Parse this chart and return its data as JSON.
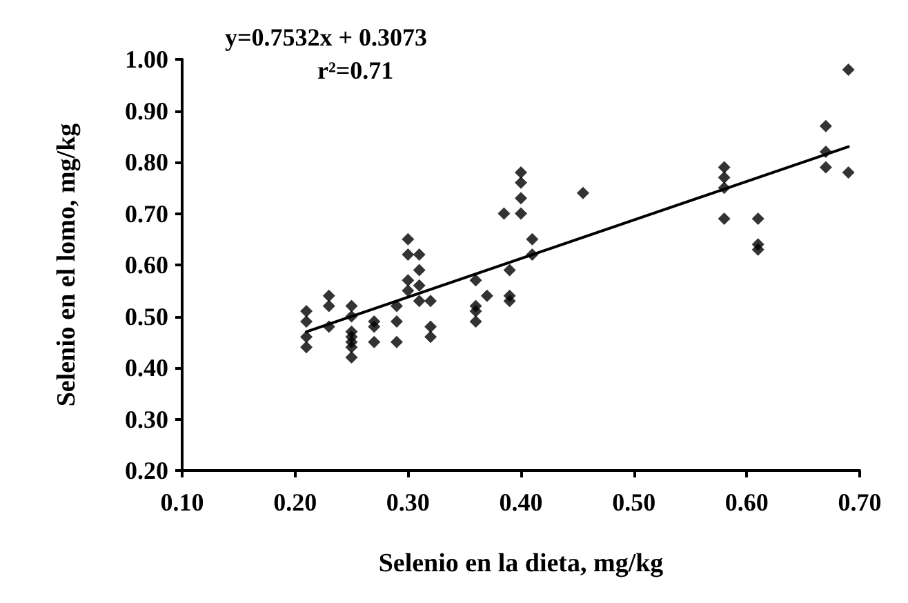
{
  "chart_data": {
    "type": "scatter",
    "xlabel": "Selenio en la dieta, mg/kg",
    "ylabel": "Selenio en el lomo, mg/kg",
    "annotations": [
      "y=0.7532x + 0.3073",
      "r²=0.71"
    ],
    "xlim": [
      0.1,
      0.7
    ],
    "ylim": [
      0.2,
      1.0
    ],
    "xticks": [
      {
        "value": 0.1,
        "label": "0.10"
      },
      {
        "value": 0.2,
        "label": "0.20"
      },
      {
        "value": 0.3,
        "label": "0.30"
      },
      {
        "value": 0.4,
        "label": "0.40"
      },
      {
        "value": 0.5,
        "label": "0.50"
      },
      {
        "value": 0.6,
        "label": "0.60"
      },
      {
        "value": 0.7,
        "label": "0.70"
      }
    ],
    "yticks": [
      {
        "value": 0.2,
        "label": "0.20"
      },
      {
        "value": 0.3,
        "label": "0.30"
      },
      {
        "value": 0.4,
        "label": "0.40"
      },
      {
        "value": 0.5,
        "label": "0.50"
      },
      {
        "value": 0.6,
        "label": "0.60"
      },
      {
        "value": 0.7,
        "label": "0.70"
      },
      {
        "value": 0.8,
        "label": "0.80"
      },
      {
        "value": 0.9,
        "label": "0.90"
      },
      {
        "value": 1.0,
        "label": "1.00"
      }
    ],
    "grid": false,
    "marker": "diamond",
    "series": [
      {
        "color": "#000000",
        "x": [
          0.21,
          0.21,
          0.21,
          0.21,
          0.23,
          0.23,
          0.23,
          0.25,
          0.25,
          0.25,
          0.25,
          0.25,
          0.25,
          0.25,
          0.27,
          0.27,
          0.27,
          0.29,
          0.29,
          0.29,
          0.3,
          0.3,
          0.3,
          0.3,
          0.31,
          0.31,
          0.31,
          0.31,
          0.32,
          0.32,
          0.32,
          0.36,
          0.36,
          0.36,
          0.36,
          0.37,
          0.385,
          0.39,
          0.39,
          0.39,
          0.4,
          0.4,
          0.4,
          0.4,
          0.41,
          0.41,
          0.455,
          0.58,
          0.58,
          0.58,
          0.58,
          0.61,
          0.61,
          0.61,
          0.67,
          0.67,
          0.67,
          0.69,
          0.69
        ],
        "values": [
          0.51,
          0.49,
          0.46,
          0.44,
          0.54,
          0.52,
          0.48,
          0.52,
          0.5,
          0.47,
          0.46,
          0.45,
          0.44,
          0.42,
          0.49,
          0.48,
          0.45,
          0.52,
          0.49,
          0.45,
          0.65,
          0.62,
          0.57,
          0.55,
          0.62,
          0.59,
          0.56,
          0.53,
          0.53,
          0.48,
          0.46,
          0.57,
          0.52,
          0.51,
          0.49,
          0.54,
          0.7,
          0.59,
          0.54,
          0.53,
          0.78,
          0.76,
          0.73,
          0.7,
          0.65,
          0.62,
          0.74,
          0.79,
          0.77,
          0.75,
          0.69,
          0.69,
          0.64,
          0.63,
          0.87,
          0.82,
          0.79,
          0.98,
          0.78
        ]
      },
      {
        "type": "line",
        "color": "#000000",
        "marker": "none",
        "line_style": "solid",
        "x": [
          0.21,
          0.69
        ],
        "values": [
          0.47,
          0.83
        ]
      }
    ]
  }
}
